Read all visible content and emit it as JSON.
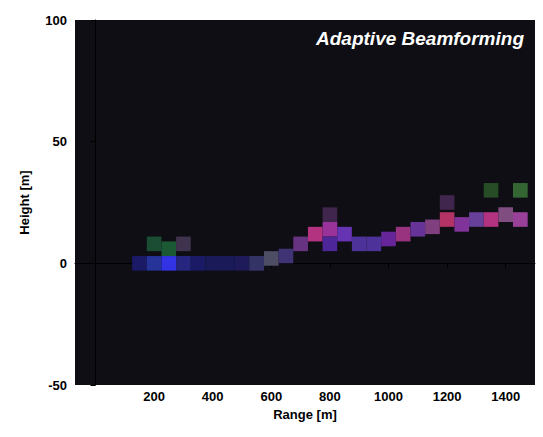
{
  "chart_data": {
    "type": "heatmap",
    "title": "Adaptive Beamforming",
    "x_label": "Range [m]",
    "y_label": "Height [m]",
    "xlim": [
      -70,
      1500
    ],
    "xticks": [
      200,
      400,
      600,
      800,
      1000,
      1200,
      1400
    ],
    "ylim": [
      -50,
      100
    ],
    "yticks": [
      -50,
      0,
      50,
      100
    ],
    "grid": false,
    "cell_width": 50,
    "cell_height": 6,
    "cells": [
      {
        "x": 150,
        "y": 0,
        "r": 0.1,
        "g": 0.1,
        "b": 0.4
      },
      {
        "x": 200,
        "y": 0,
        "r": 0.15,
        "g": 0.2,
        "b": 0.6
      },
      {
        "x": 250,
        "y": 0,
        "r": 0.2,
        "g": 0.2,
        "b": 0.9
      },
      {
        "x": 250,
        "y": 6,
        "r": 0.1,
        "g": 0.35,
        "b": 0.2
      },
      {
        "x": 200,
        "y": 8,
        "r": 0.1,
        "g": 0.3,
        "b": 0.2
      },
      {
        "x": 300,
        "y": 0,
        "r": 0.15,
        "g": 0.15,
        "b": 0.5
      },
      {
        "x": 300,
        "y": 8,
        "r": 0.25,
        "g": 0.2,
        "b": 0.3
      },
      {
        "x": 350,
        "y": 0,
        "r": 0.1,
        "g": 0.1,
        "b": 0.4
      },
      {
        "x": 400,
        "y": 0,
        "r": 0.1,
        "g": 0.1,
        "b": 0.35
      },
      {
        "x": 450,
        "y": 0,
        "r": 0.1,
        "g": 0.1,
        "b": 0.35
      },
      {
        "x": 500,
        "y": 0,
        "r": 0.12,
        "g": 0.1,
        "b": 0.35
      },
      {
        "x": 550,
        "y": 0,
        "r": 0.2,
        "g": 0.2,
        "b": 0.4
      },
      {
        "x": 600,
        "y": 2,
        "r": 0.3,
        "g": 0.3,
        "b": 0.4
      },
      {
        "x": 650,
        "y": 3,
        "r": 0.25,
        "g": 0.2,
        "b": 0.45
      },
      {
        "x": 700,
        "y": 8,
        "r": 0.4,
        "g": 0.2,
        "b": 0.5
      },
      {
        "x": 750,
        "y": 12,
        "r": 0.7,
        "g": 0.2,
        "b": 0.5
      },
      {
        "x": 800,
        "y": 14,
        "r": 0.6,
        "g": 0.2,
        "b": 0.6
      },
      {
        "x": 800,
        "y": 8,
        "r": 0.3,
        "g": 0.15,
        "b": 0.6
      },
      {
        "x": 850,
        "y": 12,
        "r": 0.4,
        "g": 0.2,
        "b": 0.7
      },
      {
        "x": 900,
        "y": 8,
        "r": 0.3,
        "g": 0.2,
        "b": 0.6
      },
      {
        "x": 950,
        "y": 8,
        "r": 0.3,
        "g": 0.2,
        "b": 0.6
      },
      {
        "x": 1000,
        "y": 10,
        "r": 0.4,
        "g": 0.15,
        "b": 0.6
      },
      {
        "x": 1050,
        "y": 12,
        "r": 0.6,
        "g": 0.2,
        "b": 0.5
      },
      {
        "x": 1100,
        "y": 14,
        "r": 0.4,
        "g": 0.2,
        "b": 0.6
      },
      {
        "x": 1150,
        "y": 15,
        "r": 0.5,
        "g": 0.25,
        "b": 0.5
      },
      {
        "x": 1200,
        "y": 18,
        "r": 0.7,
        "g": 0.2,
        "b": 0.4
      },
      {
        "x": 1250,
        "y": 16,
        "r": 0.5,
        "g": 0.2,
        "b": 0.6
      },
      {
        "x": 1300,
        "y": 18,
        "r": 0.4,
        "g": 0.25,
        "b": 0.6
      },
      {
        "x": 1350,
        "y": 18,
        "r": 0.7,
        "g": 0.2,
        "b": 0.5
      },
      {
        "x": 1400,
        "y": 20,
        "r": 0.5,
        "g": 0.3,
        "b": 0.5
      },
      {
        "x": 1450,
        "y": 18,
        "r": 0.6,
        "g": 0.25,
        "b": 0.6
      },
      {
        "x": 1450,
        "y": 30,
        "r": 0.2,
        "g": 0.4,
        "b": 0.2
      },
      {
        "x": 1350,
        "y": 30,
        "r": 0.15,
        "g": 0.3,
        "b": 0.15
      },
      {
        "x": 800,
        "y": 20,
        "r": 0.25,
        "g": 0.15,
        "b": 0.3
      },
      {
        "x": 1200,
        "y": 25,
        "r": 0.25,
        "g": 0.15,
        "b": 0.3
      }
    ]
  }
}
